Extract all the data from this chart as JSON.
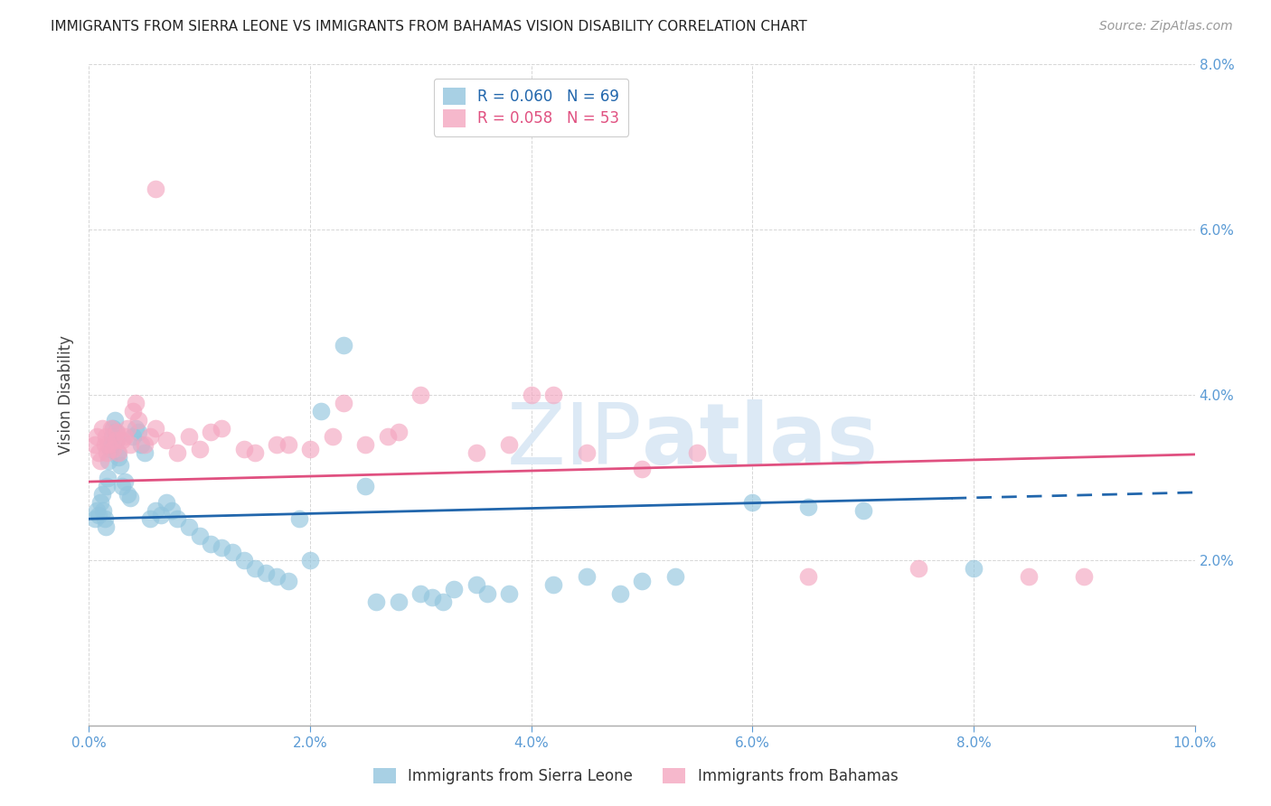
{
  "title": "IMMIGRANTS FROM SIERRA LEONE VS IMMIGRANTS FROM BAHAMAS VISION DISABILITY CORRELATION CHART",
  "source": "Source: ZipAtlas.com",
  "ylabel": "Vision Disability",
  "xlim": [
    0.0,
    10.0
  ],
  "ylim": [
    0.0,
    8.0
  ],
  "yticks": [
    0.0,
    2.0,
    4.0,
    6.0,
    8.0
  ],
  "xticks": [
    0.0,
    2.0,
    4.0,
    6.0,
    8.0,
    10.0
  ],
  "sierra_leone_R": 0.06,
  "sierra_leone_N": 69,
  "bahamas_R": 0.058,
  "bahamas_N": 53,
  "sierra_leone_color": "#92c5de",
  "bahamas_color": "#f4a6c0",
  "sierra_leone_line_color": "#2166ac",
  "bahamas_line_color": "#e05080",
  "watermark_zip": "ZIP",
  "watermark_atlas": "atlas",
  "watermark_color": "#dce9f5",
  "background_color": "#ffffff",
  "title_fontsize": 11,
  "axis_tick_color": "#5b9bd5",
  "grid_color": "#cccccc",
  "sierra_leone_label": "Immigrants from Sierra Leone",
  "bahamas_label": "Immigrants from Bahamas",
  "sierra_leone_x": [
    0.05,
    0.07,
    0.09,
    0.1,
    0.12,
    0.13,
    0.14,
    0.15,
    0.16,
    0.17,
    0.18,
    0.19,
    0.2,
    0.21,
    0.22,
    0.23,
    0.24,
    0.25,
    0.26,
    0.27,
    0.28,
    0.3,
    0.32,
    0.35,
    0.37,
    0.4,
    0.42,
    0.45,
    0.47,
    0.5,
    0.55,
    0.6,
    0.65,
    0.7,
    0.75,
    0.8,
    0.9,
    1.0,
    1.1,
    1.2,
    1.3,
    1.4,
    1.5,
    1.6,
    1.7,
    1.8,
    1.9,
    2.1,
    2.3,
    2.5,
    2.8,
    3.0,
    3.2,
    3.5,
    3.8,
    4.2,
    4.5,
    4.8,
    6.5,
    7.0,
    8.0,
    3.3,
    3.6,
    5.0,
    5.3,
    6.0,
    2.0,
    2.6,
    3.1
  ],
  "sierra_leone_y": [
    2.5,
    2.6,
    2.55,
    2.7,
    2.8,
    2.6,
    2.5,
    2.4,
    2.9,
    3.0,
    3.2,
    3.35,
    3.4,
    3.5,
    3.6,
    3.7,
    3.55,
    3.45,
    3.3,
    3.25,
    3.15,
    2.9,
    2.95,
    2.8,
    2.75,
    3.5,
    3.6,
    3.55,
    3.4,
    3.3,
    2.5,
    2.6,
    2.55,
    2.7,
    2.6,
    2.5,
    2.4,
    2.3,
    2.2,
    2.15,
    2.1,
    2.0,
    1.9,
    1.85,
    1.8,
    1.75,
    2.5,
    3.8,
    4.6,
    2.9,
    1.5,
    1.6,
    1.5,
    1.7,
    1.6,
    1.7,
    1.8,
    1.6,
    2.65,
    2.6,
    1.9,
    1.65,
    1.6,
    1.75,
    1.8,
    2.7,
    2.0,
    1.5,
    1.55
  ],
  "bahamas_x": [
    0.05,
    0.07,
    0.09,
    0.1,
    0.12,
    0.14,
    0.15,
    0.16,
    0.18,
    0.2,
    0.22,
    0.24,
    0.25,
    0.27,
    0.3,
    0.32,
    0.35,
    0.37,
    0.4,
    0.42,
    0.45,
    0.5,
    0.55,
    0.6,
    0.7,
    0.8,
    0.9,
    1.0,
    1.1,
    1.2,
    1.5,
    1.8,
    2.0,
    2.2,
    2.5,
    2.8,
    3.0,
    3.5,
    4.0,
    4.5,
    5.0,
    5.5,
    6.5,
    7.5,
    8.5,
    9.0,
    0.6,
    3.8,
    2.3,
    4.2,
    2.7,
    1.4,
    1.7
  ],
  "bahamas_y": [
    3.4,
    3.5,
    3.3,
    3.2,
    3.6,
    3.4,
    3.5,
    3.3,
    3.4,
    3.6,
    3.35,
    3.45,
    3.55,
    3.3,
    3.45,
    3.5,
    3.6,
    3.4,
    3.8,
    3.9,
    3.7,
    3.4,
    3.5,
    3.6,
    3.45,
    3.3,
    3.5,
    3.35,
    3.55,
    3.6,
    3.3,
    3.4,
    3.35,
    3.5,
    3.4,
    3.55,
    4.0,
    3.3,
    4.0,
    3.3,
    3.1,
    3.3,
    1.8,
    1.9,
    1.8,
    1.8,
    6.5,
    3.4,
    3.9,
    4.0,
    3.5,
    3.35,
    3.4
  ],
  "sl_trend_x0": 0.0,
  "sl_trend_x1": 10.0,
  "sl_trend_y0": 2.5,
  "sl_trend_y1": 2.82,
  "sl_solid_end": 7.8,
  "bah_trend_x0": 0.0,
  "bah_trend_x1": 10.0,
  "bah_trend_y0": 2.95,
  "bah_trend_y1": 3.28
}
